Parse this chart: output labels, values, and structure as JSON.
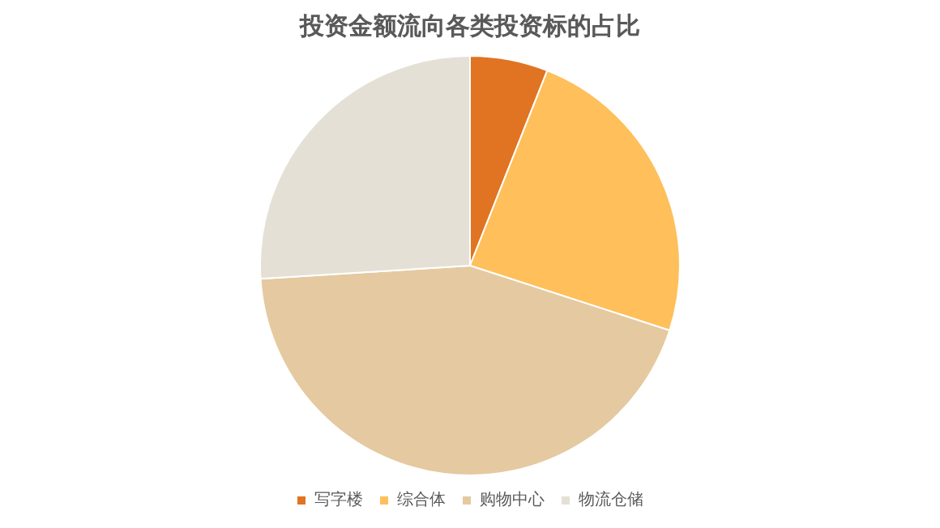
{
  "chart_data": {
    "type": "pie",
    "title": "投资金额流向各类投资标的占比",
    "categories": [
      "写字楼",
      "综合体",
      "购物中心",
      "物流仓储"
    ],
    "values": [
      6,
      24,
      44,
      26
    ],
    "colors": [
      "#e07422",
      "#ffbf5a",
      "#e5c9a0",
      "#e5e0d6"
    ],
    "legend": "bottom"
  }
}
